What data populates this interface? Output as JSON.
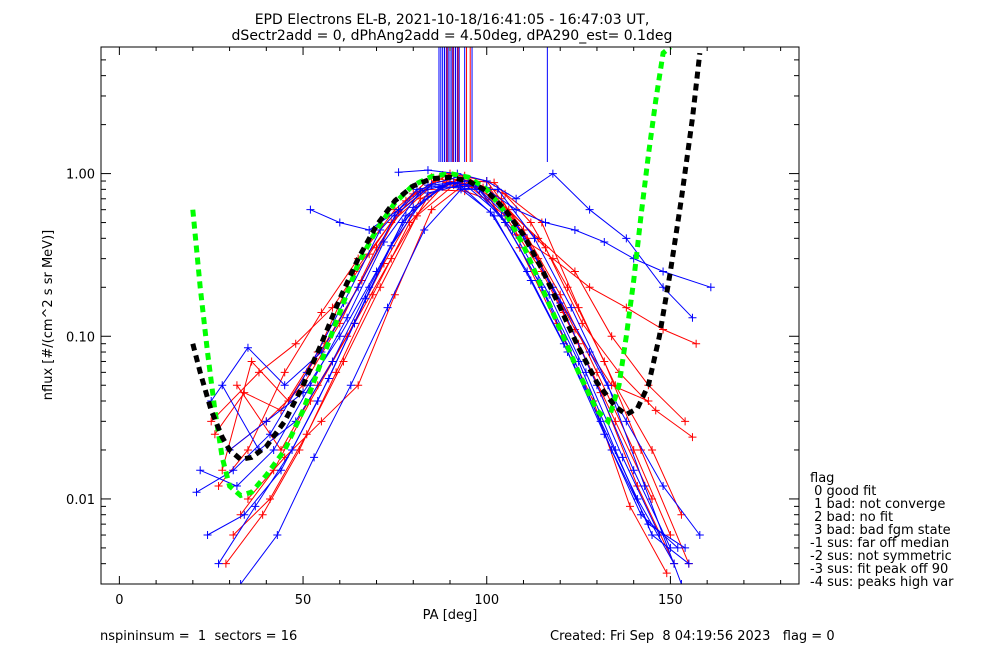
{
  "header": {
    "title": "EPD Electrons EL-B, 2021-10-18/16:41:05 - 16:47:03 UT,",
    "subtitle": "dSectr2add = 0, dPhAng2add = 4.50deg, dPA290_est=   0.1deg"
  },
  "footer": {
    "left": "nspininsum =  1  sectors = 16",
    "right": "Created: Fri Sep  8 04:19:56 2023   flag = 0"
  },
  "legend": {
    "title": "flag",
    "items": [
      " 0 good fit",
      " 1 bad: not converge",
      " 2 bad: no fit",
      " 3 bad: bad fgm state",
      "-1 sus: far off median",
      "-2 sus: not symmetric",
      "-3 sus: fit peak off 90",
      "-4 sus: peaks high var"
    ]
  },
  "colors": {
    "series_a": "#ff0000",
    "series_b": "#0000ff",
    "fit_green": "#00ff00",
    "fit_black": "#000000",
    "axis": "#000000"
  },
  "chart_data": {
    "type": "line",
    "xlabel": "PA [deg]",
    "ylabel": "nflux [#/(cm^2 s sr MeV)]",
    "xlim": [
      -5,
      185
    ],
    "ylim": [
      0.003,
      6.0
    ],
    "yscale": "log",
    "xticks": [
      0,
      50,
      100,
      150
    ],
    "yticks": [
      0.01,
      0.1,
      1.0
    ],
    "ytick_labels": [
      "0.01",
      "0.10",
      "1.00"
    ],
    "grid": false,
    "legend_placement": "right, outside plot",
    "curves": [
      {
        "color": "green",
        "style": "dashed",
        "x": [
          20,
          22,
          24,
          26,
          28,
          30,
          33,
          36,
          40,
          45,
          50,
          55,
          60,
          65,
          70,
          75,
          80,
          85,
          90,
          95,
          100,
          105,
          110,
          115,
          120,
          125,
          130,
          133,
          136,
          138,
          140,
          142,
          144,
          146,
          148,
          150
        ],
        "y": [
          0.6,
          0.2,
          0.08,
          0.035,
          0.018,
          0.012,
          0.0105,
          0.011,
          0.014,
          0.02,
          0.035,
          0.07,
          0.14,
          0.28,
          0.45,
          0.66,
          0.85,
          0.96,
          1.0,
          0.95,
          0.8,
          0.58,
          0.36,
          0.2,
          0.11,
          0.06,
          0.035,
          0.03,
          0.05,
          0.1,
          0.22,
          0.55,
          1.3,
          2.8,
          5.5,
          6.0
        ]
      },
      {
        "color": "black",
        "style": "dashed",
        "x": [
          20,
          22,
          25,
          28,
          30,
          33,
          36,
          40,
          45,
          50,
          55,
          60,
          65,
          70,
          75,
          80,
          85,
          90,
          95,
          100,
          105,
          110,
          115,
          120,
          125,
          130,
          135,
          138,
          141,
          144,
          147,
          150,
          153,
          156,
          158
        ],
        "y": [
          0.09,
          0.06,
          0.035,
          0.024,
          0.02,
          0.0175,
          0.018,
          0.021,
          0.03,
          0.05,
          0.09,
          0.17,
          0.3,
          0.48,
          0.68,
          0.84,
          0.93,
          0.95,
          0.9,
          0.78,
          0.6,
          0.42,
          0.26,
          0.15,
          0.085,
          0.052,
          0.037,
          0.033,
          0.036,
          0.05,
          0.1,
          0.25,
          0.7,
          2.2,
          5.5
        ]
      }
    ],
    "series": [
      {
        "color": "red",
        "x": [
          27,
          35,
          45,
          55,
          65,
          75,
          85,
          95,
          105,
          115,
          125,
          135,
          145
        ],
        "y": [
          0.012,
          0.02,
          0.06,
          0.14,
          0.3,
          0.6,
          0.95,
          0.85,
          0.55,
          0.25,
          0.09,
          0.03,
          0.01
        ]
      },
      {
        "color": "red",
        "x": [
          30,
          40,
          50,
          60,
          70,
          80,
          90,
          100,
          110,
          120,
          130,
          140,
          150
        ],
        "y": [
          0.02,
          0.03,
          0.05,
          0.12,
          0.35,
          0.75,
          1.0,
          0.9,
          0.45,
          0.18,
          0.06,
          0.02,
          0.006
        ]
      },
      {
        "color": "red",
        "x": [
          33,
          42,
          52,
          62,
          72,
          82,
          92,
          102,
          112,
          122,
          132,
          142,
          155
        ],
        "y": [
          0.008,
          0.015,
          0.04,
          0.1,
          0.28,
          0.7,
          0.92,
          0.88,
          0.5,
          0.2,
          0.07,
          0.02,
          0.004
        ]
      },
      {
        "color": "red",
        "x": [
          25,
          38,
          48,
          58,
          68,
          78,
          88,
          98,
          108,
          118,
          128,
          138,
          148,
          157
        ],
        "y": [
          0.03,
          0.06,
          0.09,
          0.15,
          0.32,
          0.68,
          0.98,
          0.8,
          0.42,
          0.3,
          0.2,
          0.15,
          0.11,
          0.09
        ]
      },
      {
        "color": "red",
        "x": [
          28,
          36,
          46,
          56,
          66,
          76,
          86,
          96,
          106,
          116,
          126,
          136,
          146,
          156
        ],
        "y": [
          0.015,
          0.07,
          0.04,
          0.09,
          0.22,
          0.58,
          0.9,
          0.86,
          0.6,
          0.35,
          0.12,
          0.06,
          0.035,
          0.024
        ]
      },
      {
        "color": "red",
        "x": [
          31,
          41,
          51,
          61,
          71,
          81,
          91,
          101,
          111,
          121,
          131,
          141,
          151
        ],
        "y": [
          0.006,
          0.01,
          0.025,
          0.07,
          0.2,
          0.55,
          0.85,
          0.8,
          0.4,
          0.14,
          0.045,
          0.012,
          0.004
        ]
      },
      {
        "color": "red",
        "x": [
          26,
          34,
          44,
          54,
          64,
          74,
          84,
          94,
          104,
          114,
          124,
          134,
          144,
          154
        ],
        "y": [
          0.025,
          0.045,
          0.035,
          0.08,
          0.25,
          0.5,
          0.8,
          0.78,
          0.65,
          0.4,
          0.25,
          0.1,
          0.05,
          0.03
        ]
      },
      {
        "color": "red",
        "x": [
          29,
          39,
          49,
          59,
          69,
          79,
          89,
          99,
          109,
          119,
          129,
          139,
          149
        ],
        "y": [
          0.004,
          0.008,
          0.02,
          0.06,
          0.18,
          0.5,
          0.88,
          0.82,
          0.35,
          0.12,
          0.04,
          0.009,
          0.0035
        ]
      },
      {
        "color": "red",
        "x": [
          32,
          44,
          54,
          64,
          74,
          84,
          94,
          104,
          114,
          124,
          134,
          144
        ],
        "y": [
          0.05,
          0.02,
          0.05,
          0.12,
          0.3,
          0.72,
          0.97,
          0.7,
          0.3,
          0.11,
          0.05,
          0.04
        ]
      },
      {
        "color": "red",
        "x": [
          35,
          45,
          55,
          65,
          75,
          85,
          95,
          105,
          115,
          125,
          135,
          145,
          153
        ],
        "y": [
          0.01,
          0.018,
          0.03,
          0.05,
          0.18,
          0.6,
          0.9,
          0.75,
          0.5,
          0.15,
          0.05,
          0.02,
          0.008
        ]
      },
      {
        "color": "blue",
        "x": [
          22,
          32,
          42,
          52,
          62,
          72,
          82,
          92,
          102,
          112,
          122,
          132,
          142,
          152
        ],
        "y": [
          0.015,
          0.012,
          0.02,
          0.05,
          0.13,
          0.38,
          0.78,
          0.88,
          0.55,
          0.22,
          0.08,
          0.025,
          0.008,
          0.005
        ]
      },
      {
        "color": "blue",
        "x": [
          25,
          35,
          45,
          55,
          65,
          75,
          85,
          95,
          105,
          115,
          125,
          135,
          145,
          155
        ],
        "y": [
          0.04,
          0.085,
          0.05,
          0.08,
          0.2,
          0.55,
          0.85,
          0.9,
          0.5,
          0.2,
          0.07,
          0.02,
          0.006,
          0.004
        ]
      },
      {
        "color": "blue",
        "x": [
          24,
          34,
          44,
          54,
          64,
          74,
          84,
          94,
          104,
          114,
          124,
          134,
          144,
          154
        ],
        "y": [
          0.006,
          0.008,
          0.015,
          0.04,
          0.12,
          0.36,
          0.76,
          0.86,
          0.55,
          0.22,
          0.07,
          0.02,
          0.007,
          0.005
        ]
      },
      {
        "color": "blue",
        "x": [
          52,
          60,
          68,
          76,
          84,
          92,
          100,
          108,
          116,
          124,
          132,
          140,
          148,
          161
        ],
        "y": [
          0.6,
          0.5,
          0.45,
          0.6,
          0.85,
          0.95,
          0.8,
          0.6,
          0.5,
          0.45,
          0.38,
          0.3,
          0.25,
          0.2
        ]
      },
      {
        "color": "blue",
        "x": [
          21,
          31,
          41,
          51,
          61,
          71,
          81,
          91,
          101,
          111,
          121,
          131,
          141,
          151
        ],
        "y": [
          0.011,
          0.015,
          0.025,
          0.06,
          0.16,
          0.45,
          0.8,
          0.87,
          0.58,
          0.25,
          0.09,
          0.03,
          0.01,
          0.004
        ]
      },
      {
        "color": "blue",
        "x": [
          27,
          37,
          47,
          57,
          67,
          77,
          87,
          97,
          107,
          117,
          127,
          137,
          147
        ],
        "y": [
          0.004,
          0.009,
          0.02,
          0.055,
          0.17,
          0.5,
          0.82,
          0.84,
          0.45,
          0.18,
          0.06,
          0.018,
          0.006
        ]
      },
      {
        "color": "blue",
        "x": [
          30,
          40,
          50,
          60,
          70,
          80,
          90,
          100,
          110,
          120,
          130,
          140,
          150
        ],
        "y": [
          0.02,
          0.03,
          0.045,
          0.1,
          0.25,
          0.62,
          0.88,
          0.82,
          0.42,
          0.16,
          0.05,
          0.015,
          0.005
        ]
      },
      {
        "color": "blue",
        "x": [
          76,
          84,
          92,
          100,
          108,
          118,
          128,
          138,
          148,
          156
        ],
        "y": [
          1.02,
          1.05,
          1.0,
          0.9,
          0.7,
          1.0,
          0.6,
          0.4,
          0.2,
          0.13
        ]
      },
      {
        "color": "blue",
        "x": [
          33,
          43,
          53,
          63,
          73,
          83,
          93,
          103,
          113,
          123,
          133,
          143,
          153
        ],
        "y": [
          0.003,
          0.006,
          0.018,
          0.05,
          0.15,
          0.45,
          0.8,
          0.8,
          0.4,
          0.15,
          0.05,
          0.012,
          0.003
        ]
      },
      {
        "color": "blue",
        "x": [
          28,
          38,
          48,
          58,
          68,
          78,
          88,
          98,
          108,
          118,
          128,
          138,
          148,
          158
        ],
        "y": [
          0.05,
          0.02,
          0.03,
          0.07,
          0.2,
          0.55,
          0.83,
          0.8,
          0.48,
          0.2,
          0.08,
          0.03,
          0.012,
          0.006
        ]
      }
    ],
    "vertical_spikes": [
      {
        "color": "blue",
        "x": [
          87,
          87.5,
          88,
          88.5,
          89,
          89.5,
          90,
          90.5,
          91,
          91.5,
          92,
          92.5,
          94,
          96,
          116.5
        ]
      },
      {
        "color": "red",
        "x": [
          89.2,
          90.8,
          92.2,
          94.5,
          95.5
        ]
      }
    ]
  }
}
